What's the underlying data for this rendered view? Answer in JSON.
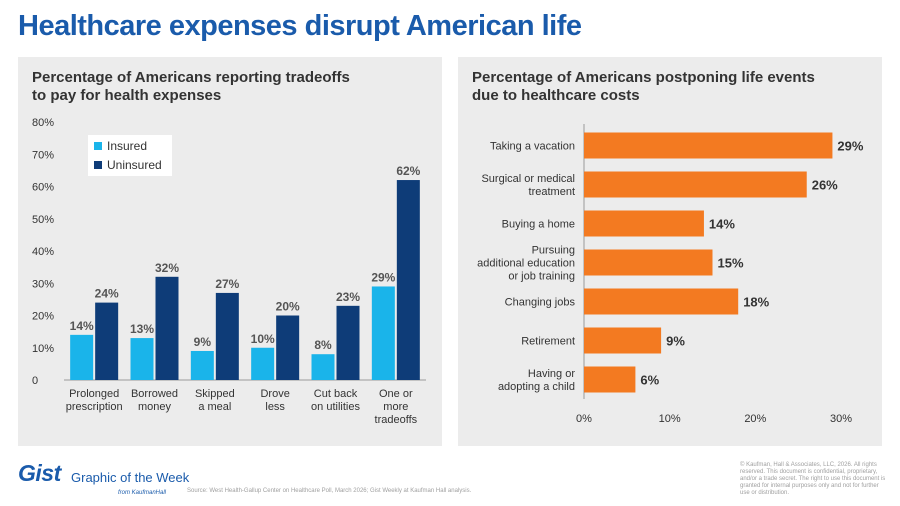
{
  "title": "Healthcare expenses disrupt American life",
  "chart_data": [
    {
      "type": "bar",
      "title": [
        "Percentage of Americans reporting tradeoffs",
        "to pay for health expenses"
      ],
      "categories": [
        [
          "Prolonged",
          "prescription"
        ],
        [
          "Borrowed",
          "money"
        ],
        [
          "Skipped",
          "a meal"
        ],
        [
          "Drove",
          "less"
        ],
        [
          "Cut back",
          "on utilities"
        ],
        [
          "One or",
          "more",
          "tradeoffs"
        ]
      ],
      "series": [
        {
          "name": "Insured",
          "values": [
            14,
            13,
            9,
            10,
            8,
            29
          ],
          "color": "#1ab4ea"
        },
        {
          "name": "Uninsured",
          "values": [
            24,
            32,
            27,
            20,
            23,
            62
          ],
          "color": "#0e3c78"
        }
      ],
      "ylim": [
        0,
        80
      ],
      "yticks": [
        "0",
        "10%",
        "20%",
        "30%",
        "40%",
        "50%",
        "60%",
        "70%",
        "80%"
      ],
      "value_suffix": "%",
      "legend_position": "top-left",
      "grid": false
    },
    {
      "type": "bar",
      "orientation": "horizontal",
      "title": [
        "Percentage of Americans postponing life events",
        "due to healthcare costs"
      ],
      "categories": [
        [
          "Taking a vacation"
        ],
        [
          "Surgical or medical",
          "treatment"
        ],
        [
          "Buying a home"
        ],
        [
          "Pursuing",
          "additional education",
          "or job training"
        ],
        [
          "Changing jobs"
        ],
        [
          "Retirement"
        ],
        [
          "Having or",
          "adopting a child"
        ]
      ],
      "values": [
        29,
        26,
        14,
        15,
        18,
        9,
        6
      ],
      "color": "#f37a21",
      "xlim": [
        0,
        30
      ],
      "xticks": [
        "0%",
        "10%",
        "20%",
        "30%"
      ],
      "value_suffix": "%",
      "grid": false
    }
  ],
  "footer": {
    "logo_text": "Gist",
    "logo_subtitle": "Graphic of the Week",
    "logo_from": "from KaufmanHall",
    "source": "Source: West Health-Gallup Center on Healthcare Poll, March 2026; Gist Weekly at Kaufman Hall analysis.",
    "copyright": "© Kaufman, Hall & Associates, LLC, 2026. All rights reserved. This document is confidential, proprietary, and/or a trade secret. The right to use this document is granted for internal purposes only and not for further use or distribution."
  }
}
